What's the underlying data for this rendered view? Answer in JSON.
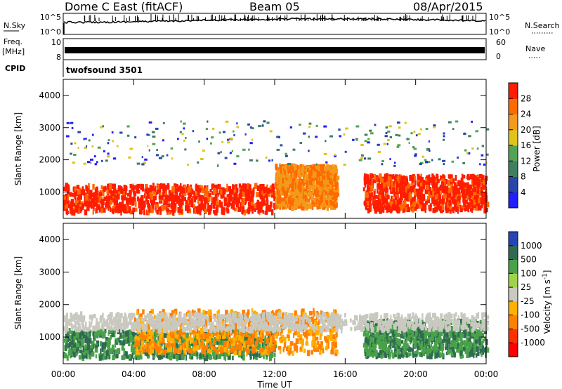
{
  "header": {
    "station": "Dome C East (fitACF)",
    "beam": "Beam 05",
    "date": "08/Apr/2015"
  },
  "top_panels": {
    "nsky_label": "N.Sky",
    "nsky_ticks": [
      "10^5",
      "10^0"
    ],
    "nsearch_label": "N.Search",
    "freq_label_1": "Freq.",
    "freq_label_2": "[MHz]",
    "freq_ticks": [
      "10",
      "8"
    ],
    "nave_label": "Nave",
    "nave_ticks": [
      "60",
      "0"
    ],
    "cpid_label": "CPID",
    "cpid_value": "twofsound 3501"
  },
  "colors": {
    "power_scale": [
      "#1f1fff",
      "#2746a8",
      "#3f7f5f",
      "#54a354",
      "#e0c41c",
      "#f39a1a",
      "#ff6a00",
      "#ff1c00"
    ],
    "velocity_scale": [
      "#2645b5",
      "#2f6b52",
      "#49a249",
      "#9fd44a",
      "#c9c9c0",
      "#ffb000",
      "#ff8000",
      "#ff3000",
      "#ff0000"
    ]
  },
  "chart_data": [
    {
      "type": "heatmap",
      "name": "Power",
      "ylabel": "Slant Range [km]",
      "xlabel": "",
      "x_ticks": [
        "00:00",
        "04:00",
        "08:00",
        "12:00",
        "16:00",
        "20:00",
        "00:00"
      ],
      "x_range_hours": [
        0,
        24
      ],
      "y_ticks": [
        "4000",
        "3000",
        "2000",
        "1000"
      ],
      "y_range_km": [
        180,
        4500
      ],
      "colorbar_label": "Power [dB]",
      "colorbar_ticks": [
        "28",
        "24",
        "20",
        "16",
        "12",
        "8",
        "4"
      ],
      "colorbar_range": [
        0,
        32
      ],
      "echo_regions": [
        {
          "t_start": 0.0,
          "t_end": 12.0,
          "range_min": 350,
          "range_max": 1200,
          "level": "high"
        },
        {
          "t_start": 12.0,
          "t_end": 15.5,
          "range_min": 500,
          "range_max": 1800,
          "level": "medium"
        },
        {
          "t_start": 17.0,
          "t_end": 24.0,
          "range_min": 400,
          "range_max": 1500,
          "level": "high"
        },
        {
          "t_start": 0.0,
          "t_end": 24.0,
          "range_min": 1800,
          "range_max": 3200,
          "level": "sparse"
        }
      ]
    },
    {
      "type": "heatmap",
      "name": "Velocity",
      "ylabel": "Slant Range [km]",
      "xlabel": "Time UT",
      "x_ticks": [
        "00:00",
        "04:00",
        "08:00",
        "12:00",
        "16:00",
        "20:00",
        "00:00"
      ],
      "x_range_hours": [
        0,
        24
      ],
      "y_ticks": [
        "4000",
        "3000",
        "2000",
        "1000"
      ],
      "y_range_km": [
        180,
        4500
      ],
      "colorbar_label": "Velocity [m s^-1]",
      "colorbar_ticks": [
        "1000",
        "500",
        "100",
        "25",
        "-25",
        "-100",
        "-500",
        "-1000"
      ],
      "echo_regions": [
        {
          "t_start": 0.0,
          "t_end": 12.0,
          "range_min": 350,
          "range_max": 1200,
          "level": "positive"
        },
        {
          "t_start": 4.0,
          "t_end": 15.5,
          "range_min": 500,
          "range_max": 1800,
          "level": "negative"
        },
        {
          "t_start": 17.0,
          "t_end": 24.0,
          "range_min": 400,
          "range_max": 1500,
          "level": "positive"
        },
        {
          "t_start": 0.0,
          "t_end": 24.0,
          "range_min": 1200,
          "range_max": 1700,
          "level": "near-zero"
        }
      ]
    }
  ]
}
